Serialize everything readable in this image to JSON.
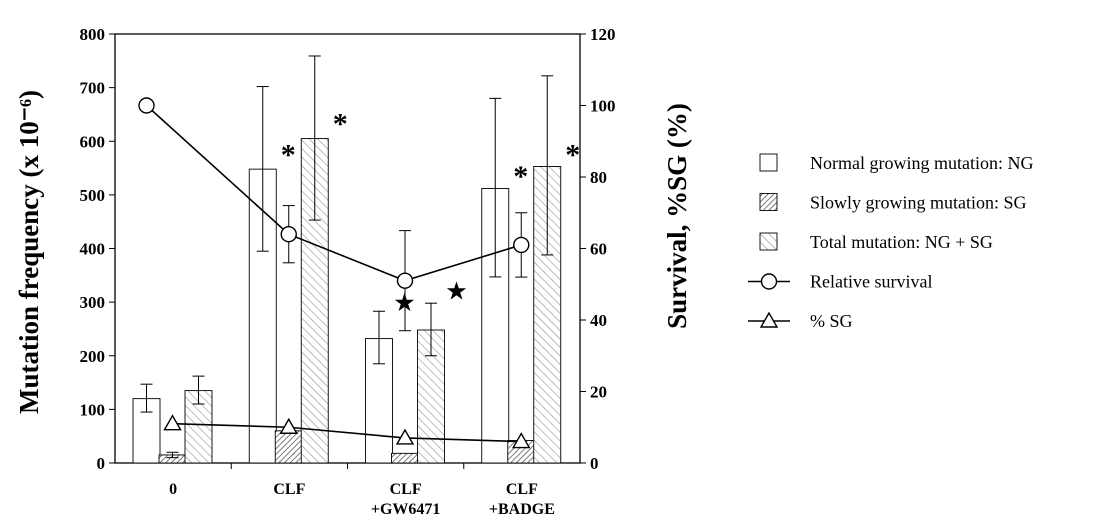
{
  "chart_data": {
    "type": "bar",
    "categories": [
      {
        "line1": "0",
        "line2": ""
      },
      {
        "line1": "CLF",
        "line2": ""
      },
      {
        "line1": "CLF",
        "line2": "+GW6471"
      },
      {
        "line1": "CLF",
        "line2": "+BADGE"
      }
    ],
    "series": [
      {
        "name": "Normal growing mutation: NG",
        "pattern": "none",
        "values": [
          120,
          548,
          232,
          512
        ],
        "err_lo": [
          95,
          395,
          185,
          347
        ],
        "err_hi": [
          147,
          702,
          283,
          680
        ]
      },
      {
        "name": "Slowly growing mutation: SG",
        "pattern": "dense-hatch",
        "values": [
          15,
          60,
          18,
          42
        ],
        "err_lo": [
          10,
          0,
          0,
          0
        ],
        "err_hi": [
          20,
          0,
          0,
          0
        ]
      },
      {
        "name": "Total mutation: NG + SG",
        "pattern": "light-hatch",
        "values": [
          135,
          605,
          248,
          553
        ],
        "err_lo": [
          110,
          453,
          200,
          388
        ],
        "err_hi": [
          162,
          759,
          298,
          722
        ]
      }
    ],
    "lines": [
      {
        "name": "Relative survival",
        "marker": "circle",
        "values": [
          100,
          64,
          51,
          61
        ],
        "err_lo": [
          null,
          56,
          37,
          52
        ],
        "err_hi": [
          null,
          72,
          65,
          70
        ],
        "marker_slot": [
          0,
          1,
          1,
          1
        ]
      },
      {
        "name": "% SG",
        "marker": "triangle",
        "values": [
          11,
          10,
          7,
          6
        ],
        "marker_slot": [
          1,
          1,
          1,
          1
        ]
      }
    ],
    "annotations": [
      {
        "symbol": "*",
        "category": 1,
        "series": 0,
        "level": 590
      },
      {
        "symbol": "*",
        "category": 1,
        "series": 2,
        "level": 648
      },
      {
        "symbol": "★",
        "category": 2,
        "series": 0,
        "level": 300
      },
      {
        "symbol": "★",
        "category": 2,
        "series": 2,
        "level": 322
      },
      {
        "symbol": "*",
        "category": 3,
        "series": 0,
        "level": 550
      },
      {
        "symbol": "*",
        "category": 3,
        "series": 2,
        "level": 590
      }
    ],
    "ylabel": "Mutation frequency  (x 10⁻⁶)",
    "y2label": "Survival,  %SG   (%)",
    "ylim": [
      0,
      800
    ],
    "y2lim": [
      0,
      120
    ],
    "yticks": [
      "0",
      "100",
      "200",
      "300",
      "400",
      "500",
      "600",
      "700",
      "800"
    ],
    "y2ticks": [
      "0",
      "20",
      "40",
      "60",
      "80",
      "100",
      "120"
    ],
    "legend_position": "right",
    "grid": false
  }
}
